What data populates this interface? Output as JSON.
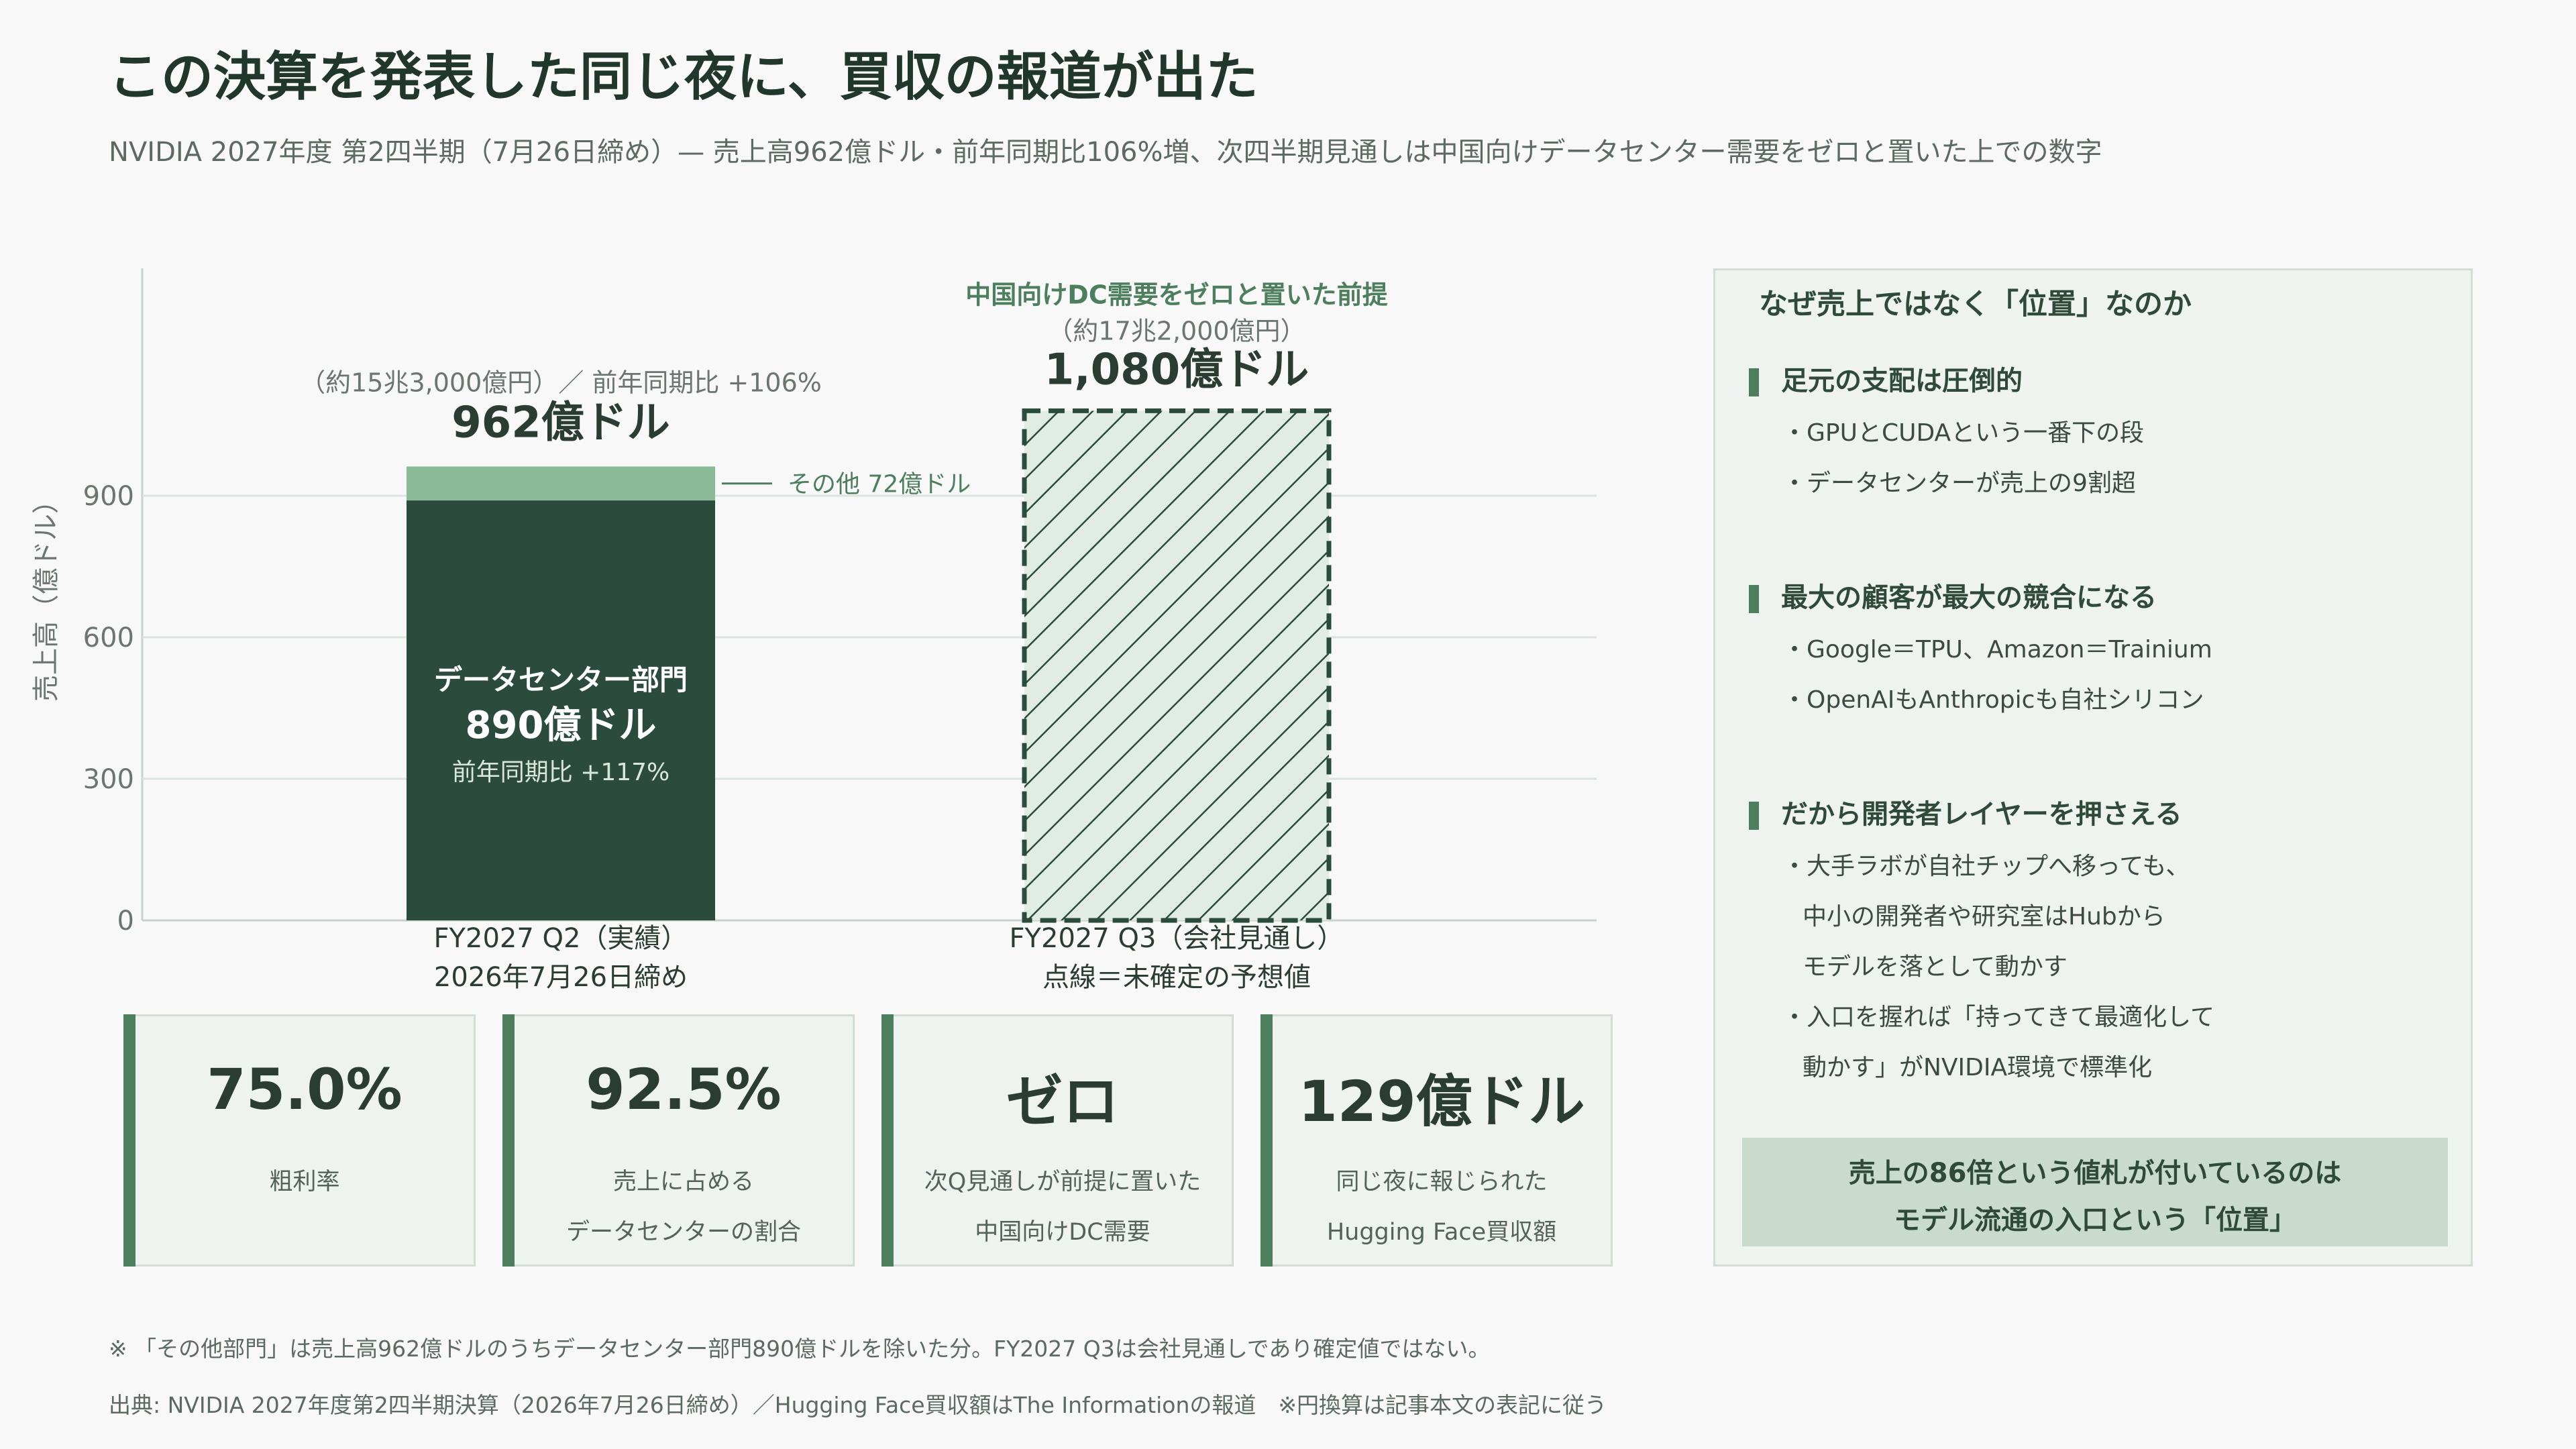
{
  "title": "この決算を発表した同じ夜に、買収の報道が出た",
  "subtitle": "NVIDIA 2027年度 第2四半期（7月26日締め）— 売上高962億ドル・前年同期比106%増、次四半期見通しは中国向けデータセンター需要をゼロと置いた上での数字",
  "chart_data": {
    "type": "bar",
    "ylabel": "売上高（億ドル）",
    "ylim": [
      0,
      1080
    ],
    "yticks": [
      0,
      300,
      600,
      900
    ],
    "grid": true,
    "categories": [
      {
        "label1": "FY2027 Q2（実績）",
        "label2": "2026年7月26日締め"
      },
      {
        "label1": "FY2027 Q3（会社見通し）",
        "label2": "点線＝未確定の予想値"
      }
    ],
    "series": [
      {
        "name": "データセンター部門",
        "values": [
          890,
          null
        ],
        "color": "#2b4b3c"
      },
      {
        "name": "その他",
        "values": [
          72,
          null
        ],
        "color": "#8cb998"
      },
      {
        "name": "会社見通し",
        "values": [
          null,
          1080
        ],
        "color": "#e1ede4",
        "style": "hatched-dashed"
      }
    ],
    "annotations": {
      "q2_top_sub": "（約15兆3,000億円）／ 前年同期比 +106%",
      "q2_top_main": "962億ドル",
      "other_label": "その他 72億ドル",
      "dc_name": "データセンター部門",
      "dc_value": "890億ドル",
      "dc_yoy": "前年同期比 +117%",
      "q3_note": "中国向けDC需要をゼロと置いた前提",
      "q3_sub": "（約17兆2,000億円）",
      "q3_main": "1,080億ドル"
    }
  },
  "kpis": [
    {
      "value": "75.0%",
      "label1": "粗利率",
      "label2": ""
    },
    {
      "value": "92.5%",
      "label1": "売上に占める",
      "label2": "データセンターの割合"
    },
    {
      "value": "ゼロ",
      "label1": "次Q見通しが前提に置いた",
      "label2": "中国向けDC需要"
    },
    {
      "value": "129億ドル",
      "label1": "同じ夜に報じられた",
      "label2": "Hugging Face買収額"
    }
  ],
  "panel": {
    "title": "なぜ売上ではなく「位置」なのか",
    "sections": [
      {
        "head": "足元の支配は圧倒的",
        "bullets": [
          "・GPUとCUDAという一番下の段",
          "・データセンターが売上の9割超"
        ]
      },
      {
        "head": "最大の顧客が最大の競合になる",
        "bullets": [
          "・Google＝TPU、Amazon＝Trainium",
          "・OpenAIもAnthropicも自社シリコン"
        ]
      },
      {
        "head": "だから開発者レイヤーを押さえる",
        "bullets": [
          "・大手ラボが自社チップへ移っても、",
          "中小の開発者や研究室はHubから",
          "モデルを落として動かす",
          "・入口を握れば「持ってきて最適化して",
          "動かす」がNVIDIA環境で標準化"
        ]
      }
    ],
    "callout1": "売上の86倍という値札が付いているのは",
    "callout2": "モデル流通の入口という「位置」"
  },
  "footnote": "※ 「その他部門」は売上高962億ドルのうちデータセンター部門890億ドルを除いた分。FY2027 Q3は会社見通しであり確定値ではない。",
  "source": "出典: NVIDIA 2027年度第2四半期決算（2026年7月26日締め）／Hugging Face買収額はThe Informationの報道　※円換算は記事本文の表記に従う"
}
